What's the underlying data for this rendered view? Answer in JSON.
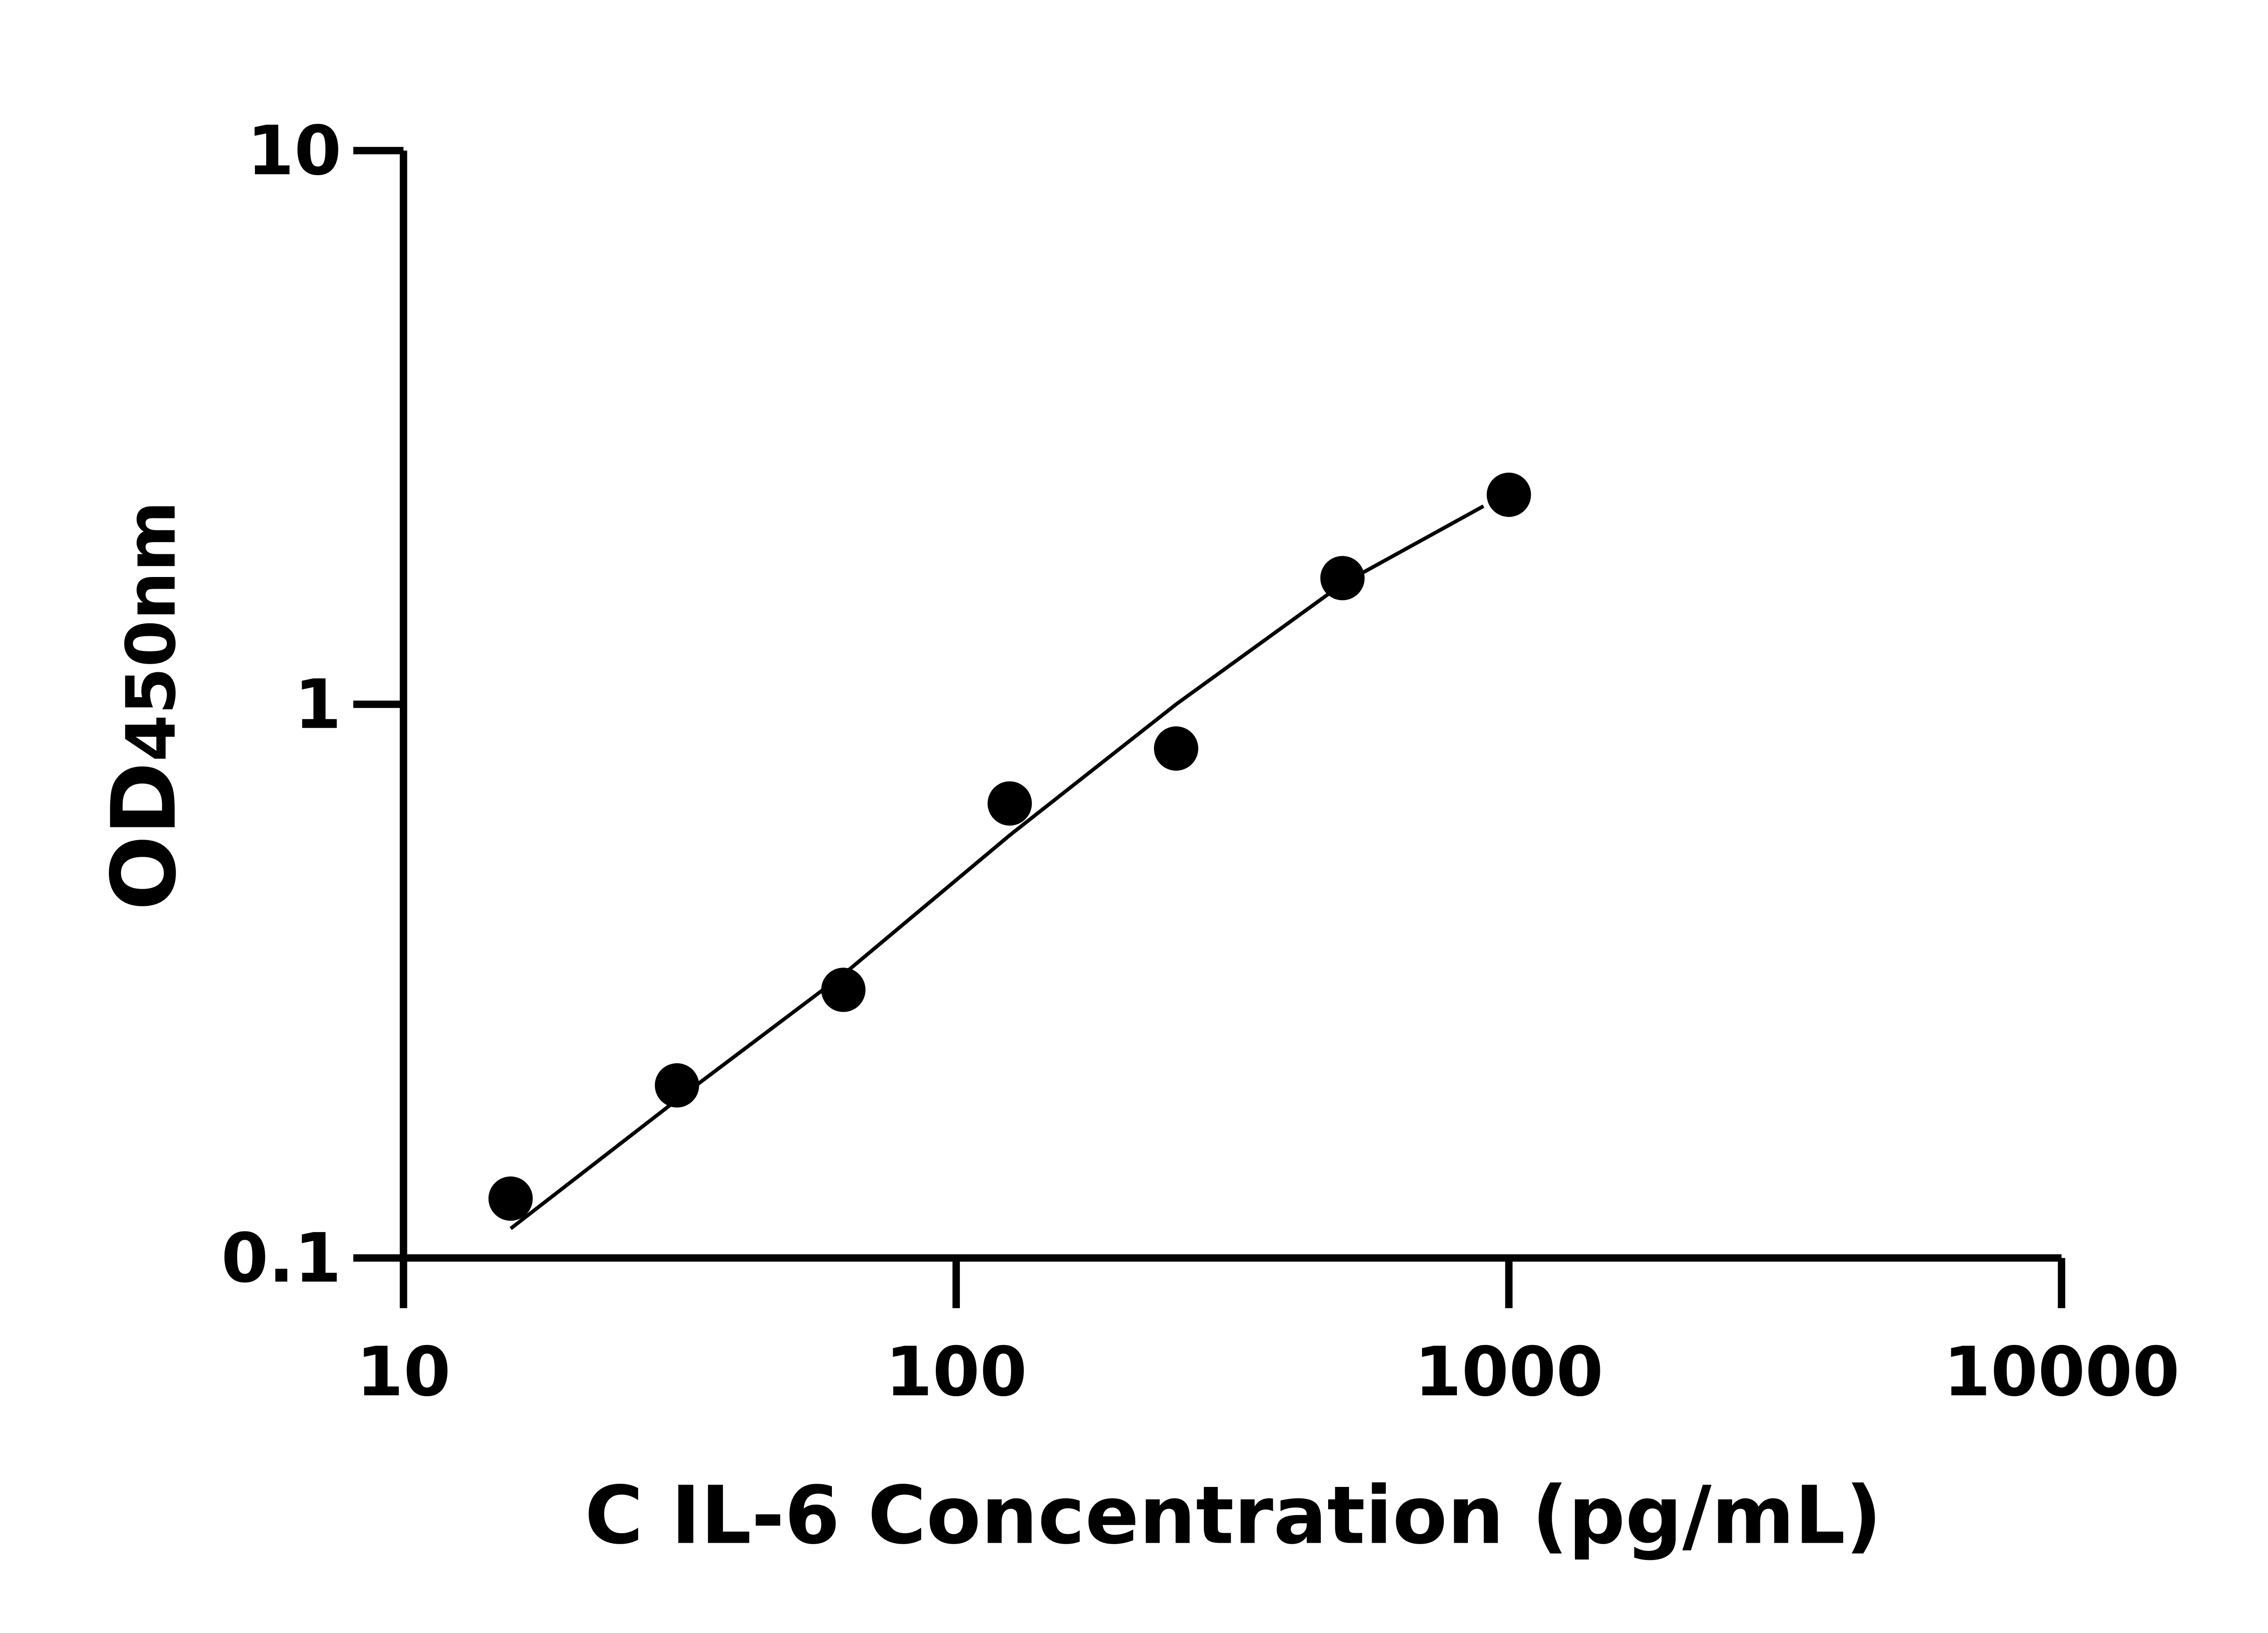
{
  "chart_data": {
    "type": "scatter",
    "title": "",
    "xlabel": "C IL-6 Concentration (pg/mL)",
    "ylabel": {
      "main": "OD",
      "sub": "450nm"
    },
    "x_scale": "log",
    "y_scale": "log",
    "xlim": [
      10,
      10000
    ],
    "ylim": [
      0.1,
      10
    ],
    "x_ticks": [
      10,
      100,
      1000,
      10000
    ],
    "x_tick_labels": [
      "10",
      "100",
      "1000",
      "10000"
    ],
    "y_ticks": [
      0.1,
      1,
      10
    ],
    "y_tick_labels": [
      "0.1",
      "1",
      "10"
    ],
    "grid": false,
    "colors": {
      "points": "#000000",
      "curve": "#000000",
      "axes": "#000000"
    },
    "series": [
      {
        "type": "scatter",
        "x": [
          15.625,
          31.25,
          62.5,
          125,
          250,
          500,
          1000
        ],
        "y": [
          0.128,
          0.205,
          0.305,
          0.662,
          0.832,
          1.69,
          2.39
        ]
      },
      {
        "type": "line",
        "x": [
          15.625,
          31.25,
          62.5,
          125,
          250,
          500,
          900
        ],
        "y": [
          0.113,
          0.193,
          0.325,
          0.58,
          1.0,
          1.65,
          2.28
        ]
      }
    ]
  }
}
